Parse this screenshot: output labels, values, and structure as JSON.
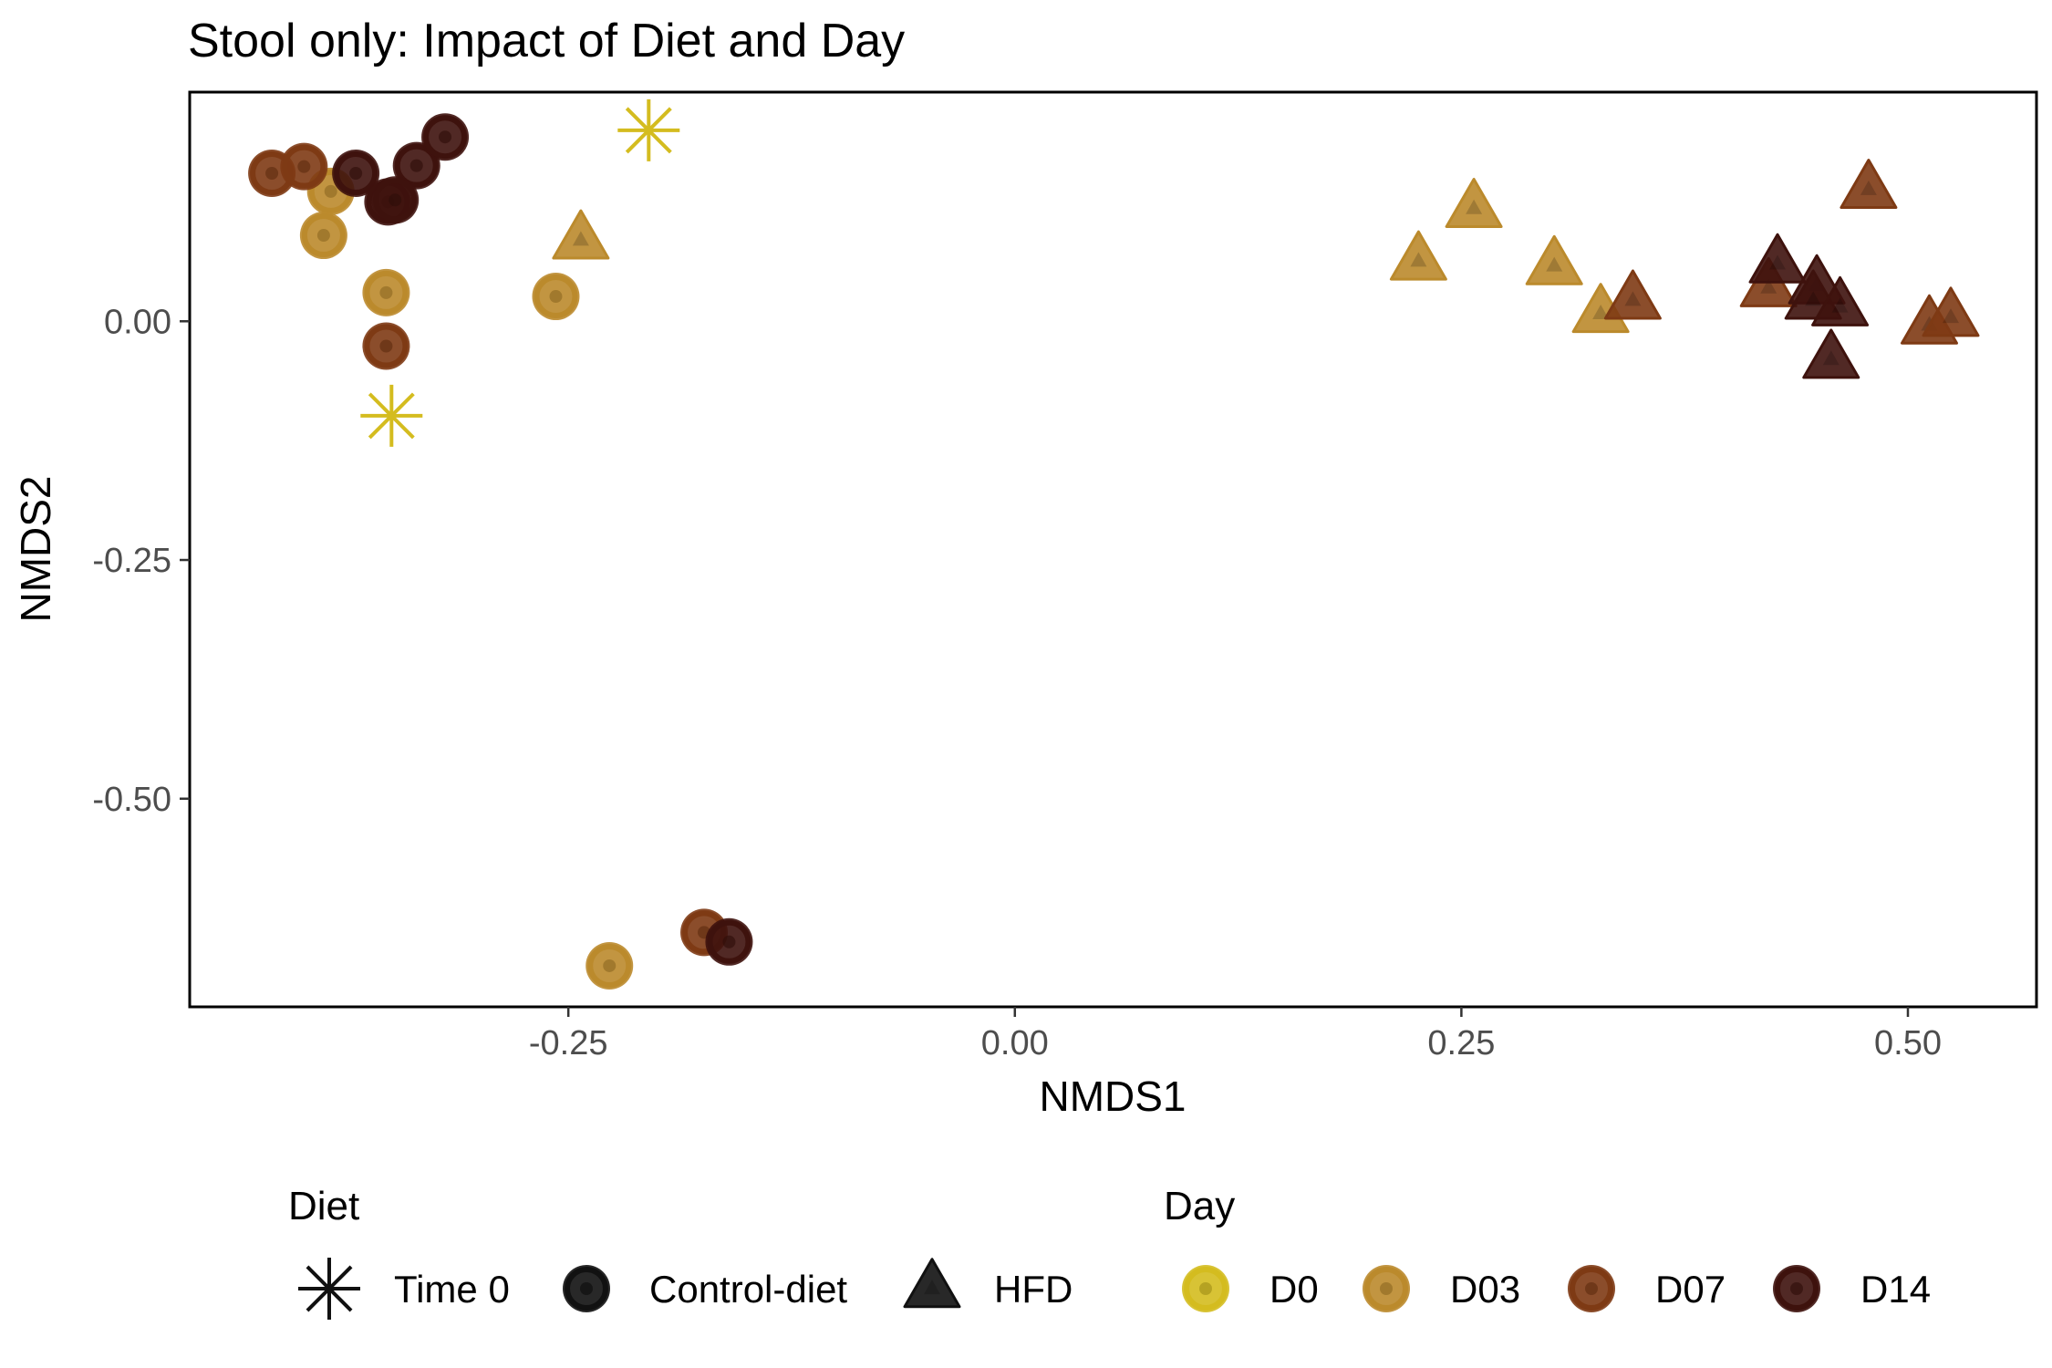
{
  "chart_data": {
    "type": "scatter",
    "title": "Stool only: Impact of Diet and Day",
    "xlabel": "NMDS1",
    "ylabel": "NMDS2",
    "xlim": [
      -0.462,
      0.572
    ],
    "ylim": [
      -0.718,
      0.24
    ],
    "x_ticks": [
      {
        "value": -0.25,
        "label": "-0.25"
      },
      {
        "value": 0.0,
        "label": "0.00"
      },
      {
        "value": 0.25,
        "label": "0.25"
      },
      {
        "value": 0.5,
        "label": "0.50"
      }
    ],
    "y_ticks": [
      {
        "value": 0.0,
        "label": "0.00"
      },
      {
        "value": -0.25,
        "label": "-0.25"
      },
      {
        "value": -0.5,
        "label": "-0.50"
      }
    ],
    "grid": false,
    "legend_position": "bottom",
    "legends": {
      "diet": {
        "title": "Diet",
        "items": [
          {
            "key": "time0",
            "label": "Time 0",
            "shape": "asterisk"
          },
          {
            "key": "control",
            "label": "Control-diet",
            "shape": "circle"
          },
          {
            "key": "hfd",
            "label": "HFD",
            "shape": "triangle"
          }
        ]
      },
      "day": {
        "title": "Day",
        "items": [
          {
            "key": "D0",
            "label": "D0",
            "color": "#D4BC1F"
          },
          {
            "key": "D03",
            "label": "D03",
            "color": "#BB8A2C"
          },
          {
            "key": "D07",
            "label": "D07",
            "color": "#7E3A14"
          },
          {
            "key": "D14",
            "label": "D14",
            "color": "#3E120D"
          }
        ]
      }
    },
    "series": [
      {
        "diet": "time0",
        "day": "D0",
        "points": [
          [
            -0.205,
            0.2
          ],
          [
            -0.349,
            -0.099
          ]
        ]
      },
      {
        "diet": "control",
        "day": "D03",
        "points": [
          [
            -0.383,
            0.136
          ],
          [
            -0.387,
            0.09
          ],
          [
            -0.352,
            0.03
          ],
          [
            -0.257,
            0.026
          ],
          [
            -0.227,
            -0.675
          ]
        ]
      },
      {
        "diet": "control",
        "day": "D07",
        "points": [
          [
            -0.416,
            0.155
          ],
          [
            -0.398,
            0.162
          ],
          [
            -0.352,
            -0.026
          ],
          [
            -0.174,
            -0.64
          ]
        ]
      },
      {
        "diet": "control",
        "day": "D14",
        "points": [
          [
            -0.369,
            0.155
          ],
          [
            -0.335,
            0.163
          ],
          [
            -0.319,
            0.193
          ],
          [
            -0.351,
            0.125
          ],
          [
            -0.347,
            0.127
          ],
          [
            -0.16,
            -0.65
          ]
        ]
      },
      {
        "diet": "hfd",
        "day": "D03",
        "points": [
          [
            -0.243,
            0.085
          ],
          [
            0.226,
            0.063
          ],
          [
            0.257,
            0.118
          ],
          [
            0.302,
            0.058
          ],
          [
            0.328,
            0.008
          ]
        ]
      },
      {
        "diet": "hfd",
        "day": "D07",
        "points": [
          [
            0.346,
            0.022
          ],
          [
            0.422,
            0.035
          ],
          [
            0.478,
            0.138
          ],
          [
            0.512,
            -0.004
          ],
          [
            0.524,
            0.004
          ]
        ]
      },
      {
        "diet": "hfd",
        "day": "D14",
        "points": [
          [
            0.427,
            0.06
          ],
          [
            0.449,
            0.038
          ],
          [
            0.447,
            0.022
          ],
          [
            0.462,
            0.015
          ],
          [
            0.457,
            -0.04
          ]
        ]
      }
    ]
  }
}
